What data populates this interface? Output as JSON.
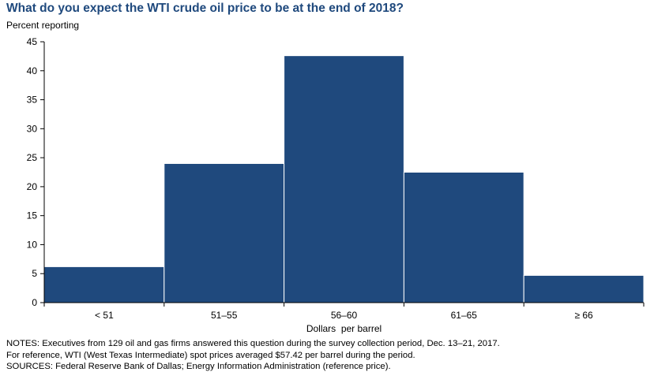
{
  "header": {
    "title": "What do you expect the WTI crude oil price to be at the end of 2018?",
    "subtitle": "Percent reporting"
  },
  "chart_data": {
    "type": "bar",
    "title": "What do you expect the WTI crude oil price to be at the end of 2018?",
    "ylabel": "Percent reporting",
    "xlabel": "Dollars  per barrel",
    "categories": [
      "< 51",
      "51–55",
      "56–60",
      "61–65",
      "≥ 66"
    ],
    "values": [
      6.2,
      24.0,
      42.6,
      22.5,
      4.7
    ],
    "ylim": [
      0,
      45
    ],
    "yticks": [
      0,
      5,
      10,
      15,
      20,
      25,
      30,
      35,
      40,
      45
    ],
    "bar_color": "#1f497d",
    "grid": false,
    "legend": "none"
  },
  "notes": {
    "line1": "NOTES: Executives from 129 oil and gas firms answered this question during the survey collection period, Dec. 13–21, 2017.",
    "line2": "For reference, WTI (West Texas Intermediate) spot prices averaged $57.42 per barrel during the period.",
    "line3": "SOURCES: Federal Reserve Bank of Dallas; Energy Information Administration (reference price)."
  }
}
